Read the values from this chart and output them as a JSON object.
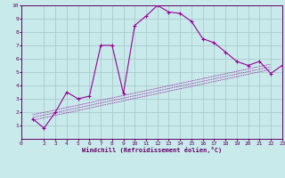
{
  "xlabel": "Windchill (Refroidissement éolien,°C)",
  "bg_color": "#c8eaea",
  "line_color": "#990099",
  "grid_color": "#aacccc",
  "axis_color": "#660066",
  "xlim": [
    0,
    23
  ],
  "ylim": [
    0,
    10
  ],
  "xticks": [
    0,
    2,
    3,
    4,
    5,
    6,
    7,
    8,
    9,
    10,
    11,
    12,
    13,
    14,
    15,
    16,
    17,
    18,
    19,
    20,
    21,
    22,
    23
  ],
  "yticks": [
    1,
    2,
    3,
    4,
    5,
    6,
    7,
    8,
    9,
    10
  ],
  "series1_x": [
    1,
    2,
    3,
    4,
    5,
    6,
    7,
    8,
    9,
    10,
    11,
    12,
    13,
    14,
    15,
    16,
    17,
    18,
    19,
    20,
    21,
    22,
    23
  ],
  "series1_y": [
    1.5,
    0.8,
    2.0,
    3.5,
    3.0,
    3.2,
    7.0,
    7.0,
    3.4,
    8.5,
    9.2,
    10.0,
    9.5,
    9.4,
    8.8,
    7.5,
    7.2,
    6.5,
    5.8,
    5.5,
    5.8,
    4.9,
    5.5
  ],
  "series2_x": [
    1,
    22
  ],
  "series2_y": [
    1.4,
    5.2
  ],
  "series3_x": [
    1,
    22
  ],
  "series3_y": [
    1.6,
    5.4
  ],
  "series4_x": [
    1,
    22
  ],
  "series4_y": [
    1.8,
    5.6
  ],
  "figsize": [
    3.2,
    2.0
  ],
  "dpi": 100
}
